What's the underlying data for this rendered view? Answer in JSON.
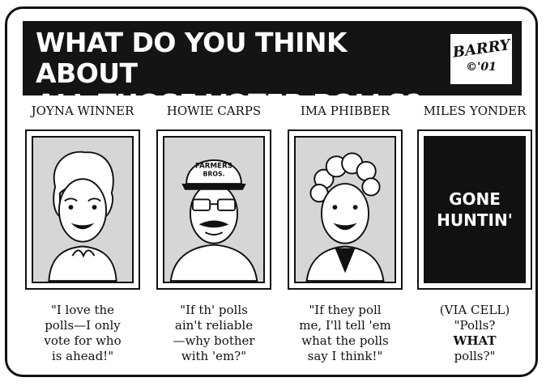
{
  "banner": {
    "title_line1": "WHAT DO YOU THINK ABOUT",
    "title_line2": "ALL THOSE VOTER POLLS?",
    "signature_name": "BARRY",
    "signature_year": "©'01"
  },
  "characters": [
    {
      "name": "JOYNA WINNER",
      "quote_lines": [
        "\"I love the",
        "polls—I only",
        "vote for who",
        "is ahead!\""
      ]
    },
    {
      "name": "HOWIE CARPS",
      "cap_text_line1": "FARMERS",
      "cap_text_line2": "BROS.",
      "quote_lines": [
        "\"If th' polls",
        "ain't reliable",
        "—why bother",
        "with 'em?\""
      ]
    },
    {
      "name": "IMA PHIBBER",
      "quote_lines": [
        "\"If they poll",
        "me, I'll tell 'em",
        "what the polls",
        "say I think!\""
      ]
    },
    {
      "name": "MILES YONDER",
      "panel_line1": "GONE",
      "panel_line2": "HUNTIN'",
      "quote_lines": [
        "(VIA CELL)",
        "\"Polls?",
        "WHAT",
        "polls?\""
      ]
    }
  ]
}
